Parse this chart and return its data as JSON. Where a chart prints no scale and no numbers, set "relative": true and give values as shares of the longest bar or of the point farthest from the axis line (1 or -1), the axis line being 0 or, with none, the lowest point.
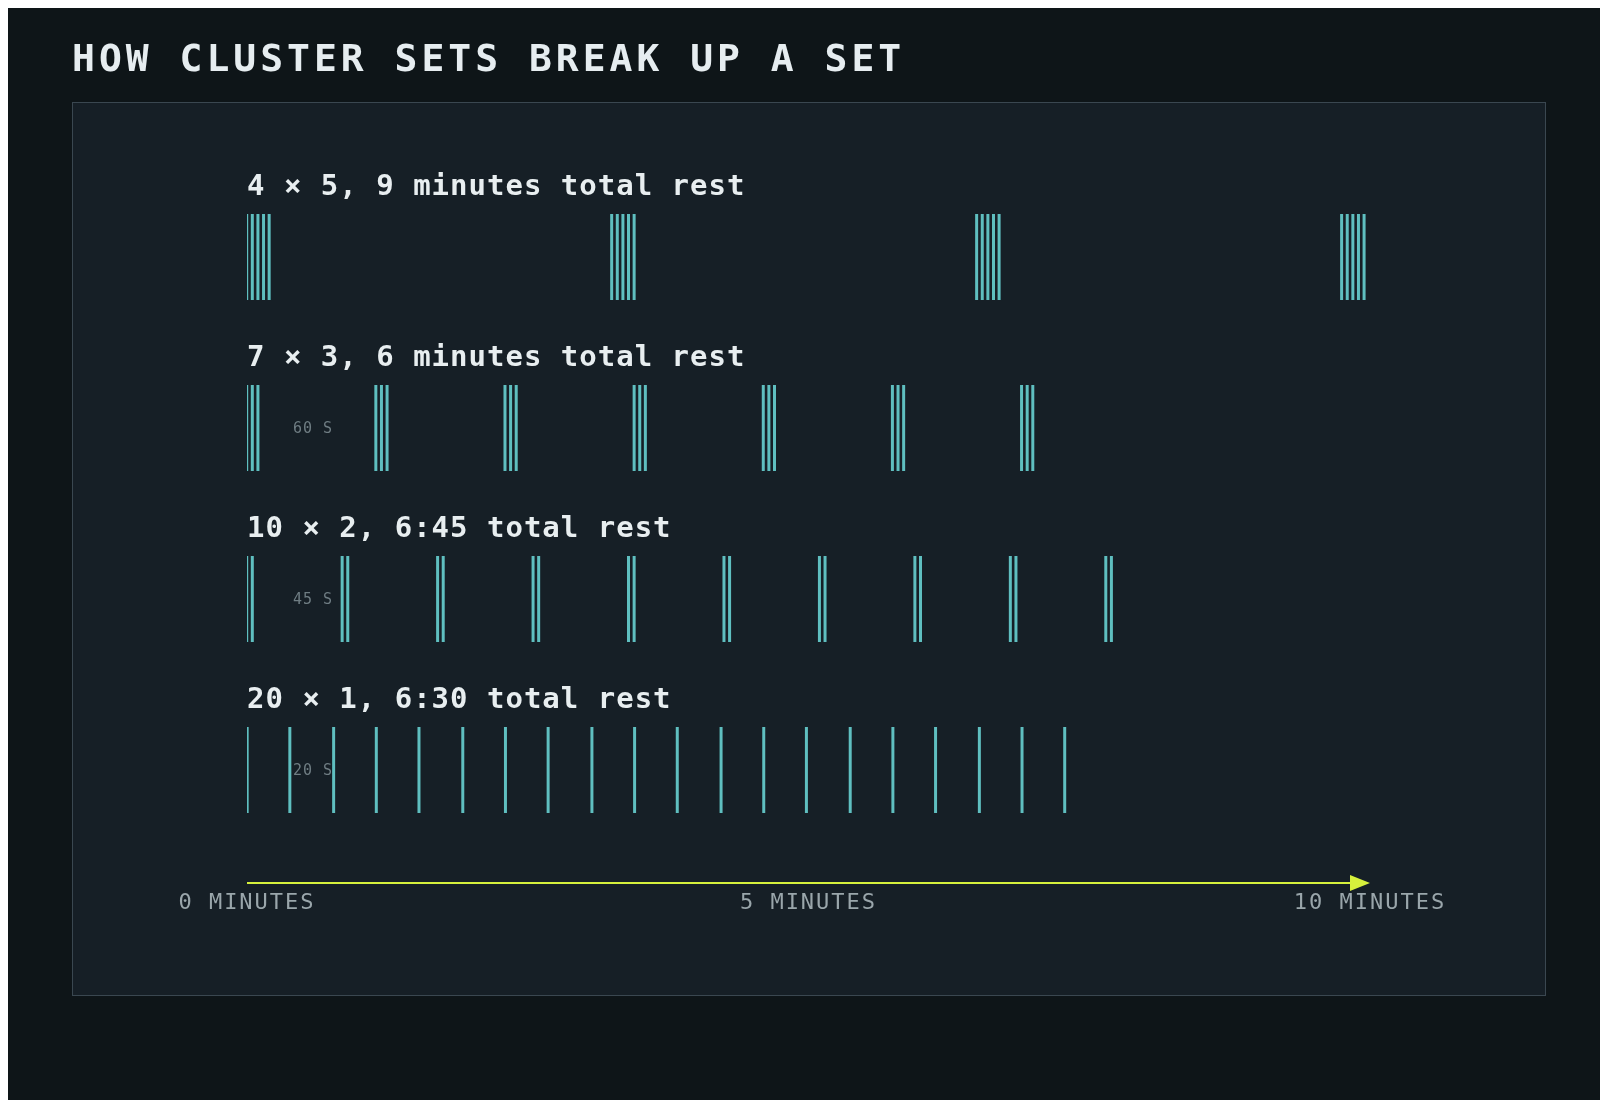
{
  "chart_data": [
    {
      "type": "other",
      "title": "HOW CLUSTER SETS BREAK UP A SET"
    },
    {
      "type": "bar",
      "title": "4 × 5, 9 minutes total rest",
      "relative": true,
      "color": "#5fbfc0",
      "xlim": [
        0,
        10
      ],
      "x": [
        0,
        0.05,
        0.1,
        0.15,
        0.2,
        3.25,
        3.3,
        3.35,
        3.4,
        3.45,
        6.5,
        6.55,
        6.6,
        6.65,
        6.7,
        9.75,
        9.8,
        9.85,
        9.9,
        9.95
      ],
      "values": [
        1,
        1,
        1,
        1,
        1,
        1,
        1,
        1,
        1,
        1,
        1,
        1,
        1,
        1,
        1,
        1,
        1,
        1,
        1,
        1
      ]
    },
    {
      "type": "bar",
      "title": "7 × 3, 6 minutes total rest",
      "relative": true,
      "color": "#5fbfc0",
      "xlim": [
        0,
        10
      ],
      "x": [
        0,
        0.05,
        0.1,
        1.15,
        1.2,
        1.25,
        2.3,
        2.35,
        2.4,
        3.45,
        3.5,
        3.55,
        4.6,
        4.65,
        4.7,
        5.75,
        5.8,
        5.85,
        6.9,
        6.95,
        7.0
      ],
      "values": [
        1,
        1,
        1,
        1,
        1,
        1,
        1,
        1,
        1,
        1,
        1,
        1,
        1,
        1,
        1,
        1,
        1,
        1,
        1,
        1,
        1
      ],
      "annotations": [
        "60 S"
      ]
    },
    {
      "type": "bar",
      "title": "10 × 2, 6:45 total rest",
      "relative": true,
      "color": "#5fbfc0",
      "xlim": [
        0,
        10
      ],
      "x": [
        0,
        0.05,
        0.85,
        0.9,
        1.7,
        1.75,
        2.55,
        2.6,
        3.4,
        3.45,
        4.25,
        4.3,
        5.1,
        5.15,
        5.95,
        6.0,
        6.8,
        6.85,
        7.65,
        7.7
      ],
      "values": [
        1,
        1,
        1,
        1,
        1,
        1,
        1,
        1,
        1,
        1,
        1,
        1,
        1,
        1,
        1,
        1,
        1,
        1,
        1,
        1
      ],
      "annotations": [
        "45 S"
      ]
    },
    {
      "type": "bar",
      "title": "20 × 1, 6:30 total rest",
      "relative": true,
      "color": "#5fbfc0",
      "xlim": [
        0,
        10
      ],
      "tick_labels": "x",
      "xticks": [
        {
          "value": 0,
          "label": "0 MINUTES"
        },
        {
          "value": 5,
          "label": "5 MINUTES"
        },
        {
          "value": 10,
          "label": "10 MINUTES"
        }
      ],
      "x": [
        0,
        0.38,
        0.77,
        1.15,
        1.53,
        1.92,
        2.3,
        2.68,
        3.07,
        3.45,
        3.83,
        4.22,
        4.6,
        4.98,
        5.37,
        5.75,
        6.13,
        6.52,
        6.9,
        7.28
      ],
      "values": [
        1,
        1,
        1,
        1,
        1,
        1,
        1,
        1,
        1,
        1,
        1,
        1,
        1,
        1,
        1,
        1,
        1,
        1,
        1,
        1
      ],
      "annotations": [
        "20 S"
      ]
    }
  ]
}
